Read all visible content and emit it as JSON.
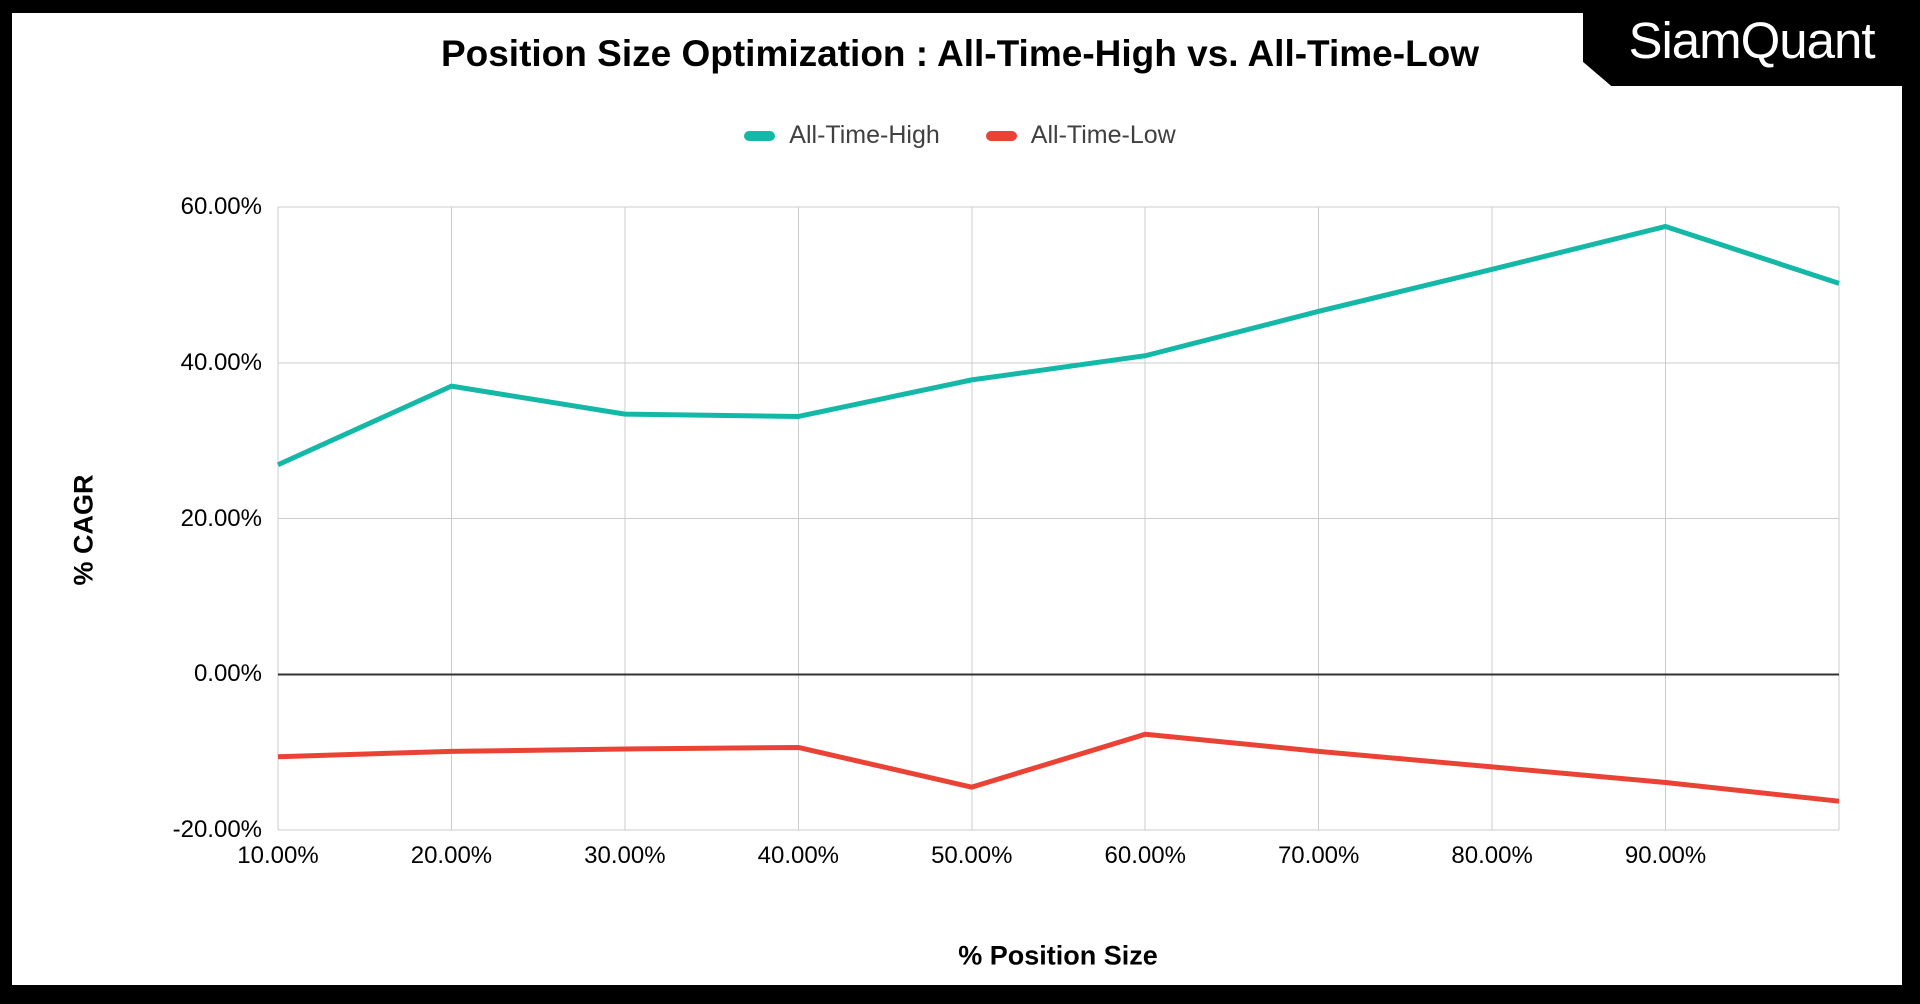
{
  "logo": {
    "text": "SiamQuant"
  },
  "chart_data": {
    "type": "line",
    "title": "Position Size Optimization : All-Time-High vs. All-Time-Low",
    "xlabel": "% Position Size",
    "ylabel": "% CAGR",
    "x": [
      10,
      20,
      30,
      40,
      50,
      60,
      70,
      80,
      90,
      100
    ],
    "xlim": [
      10,
      100
    ],
    "ylim": [
      -20,
      60
    ],
    "grid": true,
    "legend_position": "top",
    "grid_x_values": [
      10,
      20,
      30,
      40,
      50,
      60,
      70,
      80,
      90,
      100
    ],
    "xtick_values": [
      10,
      20,
      30,
      40,
      50,
      60,
      70,
      80,
      90
    ],
    "xtick_labels": [
      "10.00%",
      "20.00%",
      "30.00%",
      "40.00%",
      "50.00%",
      "60.00%",
      "70.00%",
      "80.00%",
      "90.00%"
    ],
    "ytick_values": [
      60,
      40,
      20,
      0,
      -20
    ],
    "ytick_labels": [
      "60.00%",
      "40.00%",
      "20.00%",
      "0.00%",
      "-20.00%"
    ],
    "series": [
      {
        "name": "All-Time-High",
        "color": "#14B8A6",
        "values": [
          26.9,
          37.0,
          33.4,
          33.1,
          37.8,
          40.9,
          46.6,
          52.0,
          57.5,
          50.2
        ]
      },
      {
        "name": "All-Time-Low",
        "color": "#EA4335",
        "values": [
          -10.6,
          -9.9,
          -9.6,
          -9.4,
          -14.5,
          -7.7,
          -9.9,
          -11.9,
          -13.9,
          -16.3
        ]
      }
    ],
    "gridline_color": "#cccccc",
    "zero_line_color": "#333333"
  }
}
